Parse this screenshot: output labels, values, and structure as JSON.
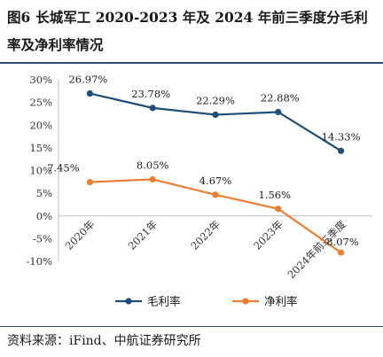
{
  "title": {
    "figure_label": "图6",
    "text": "长城军工 2020-2023 年及 2024 年前三季度分毛利率及净利率情况"
  },
  "source": "资料来源：iFind、中航证券研究所",
  "chart_data": {
    "type": "line",
    "categories": [
      "2020年",
      "2021年",
      "2022年",
      "2023年",
      "2024年前三季度"
    ],
    "series": [
      {
        "name": "毛利率",
        "values": [
          26.97,
          23.78,
          22.29,
          22.88,
          14.33
        ],
        "labels": [
          "26.97%",
          "23.78%",
          "22.29%",
          "22.88%",
          "14.33%"
        ],
        "color": "#1f4e79"
      },
      {
        "name": "净利率",
        "values": [
          7.45,
          8.05,
          4.67,
          1.56,
          -8.07
        ],
        "labels": [
          "7.45%",
          "8.05%",
          "4.67%",
          "1.56%",
          "-8.07%"
        ],
        "color": "#ed7d31"
      }
    ],
    "y_ticks": [
      "-10%",
      "-5%",
      "0%",
      "5%",
      "10%",
      "15%",
      "20%",
      "25%",
      "30%"
    ],
    "ylim": [
      -10,
      30
    ],
    "xlabel": "",
    "ylabel": "",
    "grid": false,
    "legend_position": "bottom"
  }
}
